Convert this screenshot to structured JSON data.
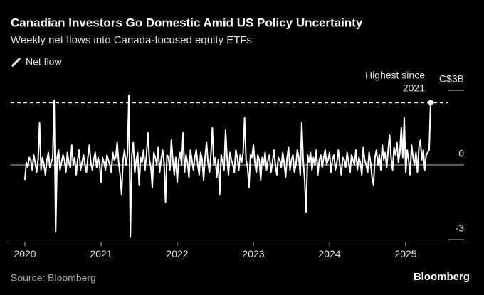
{
  "chart_data": {
    "type": "line",
    "title": "Canadian Investors Go Domestic Amid US Policy Uncertainty",
    "subtitle": "Weekly net flows into Canada-focused equity ETFs",
    "annotation": [
      "Highest since",
      "2021"
    ],
    "source": "Source: Bloomberg",
    "brand": "Bloomberg",
    "categories": [
      "2020",
      null,
      null,
      null,
      null,
      null,
      null,
      null,
      null,
      null,
      null,
      null,
      null,
      null,
      null,
      null,
      null,
      null,
      null,
      null,
      null,
      null,
      null,
      null,
      null,
      null,
      null,
      null,
      null,
      null,
      null,
      null,
      null,
      null,
      null,
      null,
      null,
      null,
      null,
      null,
      null,
      null,
      null,
      null,
      null,
      null,
      null,
      null,
      null,
      null,
      null,
      null,
      "2021",
      null,
      null,
      null,
      null,
      null,
      null,
      null,
      null,
      null,
      null,
      null,
      null,
      null,
      null,
      null,
      null,
      null,
      null,
      null,
      null,
      null,
      null,
      null,
      null,
      null,
      null,
      null,
      null,
      null,
      null,
      null,
      null,
      null,
      null,
      null,
      null,
      null,
      null,
      null,
      null,
      null,
      null,
      null,
      null,
      null,
      null,
      null,
      null,
      null,
      null,
      null,
      "2022",
      null,
      null,
      null,
      null,
      null,
      null,
      null,
      null,
      null,
      null,
      null,
      null,
      null,
      null,
      null,
      null,
      null,
      null,
      null,
      null,
      null,
      null,
      null,
      null,
      null,
      null,
      null,
      null,
      null,
      null,
      null,
      null,
      null,
      null,
      null,
      null,
      null,
      null,
      null,
      null,
      null,
      null,
      null,
      null,
      null,
      null,
      null,
      null,
      null,
      null,
      null,
      "2023",
      null,
      null,
      null,
      null,
      null,
      null,
      null,
      null,
      null,
      null,
      null,
      null,
      null,
      null,
      null,
      null,
      null,
      null,
      null,
      null,
      null,
      null,
      null,
      null,
      null,
      null,
      null,
      null,
      null,
      null,
      null,
      null,
      null,
      null,
      null,
      null,
      null,
      null,
      null,
      null,
      null,
      null,
      null,
      null,
      null,
      null,
      null,
      null,
      null,
      null,
      null,
      "2024",
      null,
      null,
      null,
      null,
      null,
      null,
      null,
      null,
      null,
      null,
      null,
      null,
      null,
      null,
      null,
      null,
      null,
      null,
      null,
      null,
      null,
      null,
      null,
      null,
      null,
      null,
      null,
      null,
      null,
      null,
      null,
      null,
      null,
      null,
      null,
      null,
      null,
      null,
      null,
      null,
      null,
      null,
      null,
      null,
      null,
      null,
      null,
      null,
      null,
      null,
      null,
      "2025",
      null,
      null,
      null,
      null,
      null,
      null,
      null,
      null,
      null,
      null,
      null,
      null,
      null,
      null,
      null,
      null,
      null
    ],
    "series": [
      {
        "name": "Net flow",
        "color": "#ffffff",
        "values": [
          -0.6,
          0.1,
          -0.1,
          0.3,
          0.2,
          -0.2,
          0.4,
          0.1,
          -0.3,
          0.2,
          1.7,
          -0.2,
          0.3,
          0.0,
          -0.4,
          0.2,
          0.5,
          -0.1,
          0.1,
          0.3,
          2.6,
          -2.7,
          0.3,
          0.6,
          -0.2,
          0.1,
          0.4,
          0.2,
          -0.3,
          0.5,
          0.1,
          -0.1,
          0.8,
          0.0,
          0.3,
          -0.4,
          0.2,
          0.6,
          -0.2,
          0.1,
          0.4,
          0.0,
          -0.3,
          0.3,
          0.8,
          0.1,
          -0.2,
          0.2,
          0.5,
          -0.1,
          0.3,
          0.0,
          -0.7,
          0.3,
          0.1,
          -0.2,
          0.4,
          0.2,
          0.0,
          -0.3,
          0.5,
          0.2,
          0.3,
          0.9,
          0.1,
          -0.4,
          -1.2,
          0.2,
          0.6,
          0.0,
          0.4,
          2.8,
          -2.9,
          0.4,
          0.9,
          -0.3,
          0.2,
          0.5,
          -0.8,
          0.3,
          0.1,
          0.6,
          -0.2,
          0.4,
          1.3,
          0.2,
          -0.1,
          -0.9,
          0.5,
          0.3,
          0.0,
          0.7,
          -0.3,
          0.2,
          0.6,
          0.1,
          -1.5,
          0.4,
          0.3,
          -0.2,
          1.0,
          0.2,
          -0.4,
          0.3,
          -0.7,
          0.2,
          0.5,
          0.0,
          1.3,
          -0.3,
          0.4,
          0.1,
          -0.5,
          0.6,
          0.2,
          -0.2,
          0.3,
          0.6,
          0.0,
          -0.4,
          0.5,
          0.2,
          -0.6,
          0.3,
          0.9,
          0.1,
          -0.3,
          0.4,
          1.5,
          0.0,
          0.3,
          -0.5,
          0.2,
          -1.2,
          0.4,
          0.1,
          -0.2,
          1.4,
          0.3,
          -0.4,
          0.5,
          0.2,
          0.0,
          -0.3,
          0.6,
          0.3,
          -0.2,
          0.4,
          0.1,
          0.5,
          1.9,
          0.2,
          -0.1,
          -0.9,
          0.4,
          0.3,
          0.8,
          0.1,
          -0.3,
          0.4,
          0.2,
          -0.6,
          0.3,
          0.0,
          0.5,
          -0.2,
          0.2,
          0.4,
          -0.3,
          0.1,
          0.6,
          0.0,
          -0.4,
          0.3,
          0.2,
          -0.1,
          0.5,
          0.1,
          -0.5,
          0.3,
          0.7,
          -0.2,
          0.2,
          0.4,
          -0.3,
          0.0,
          0.6,
          0.3,
          -0.4,
          1.7,
          0.2,
          -0.6,
          -1.9,
          0.4,
          0.1,
          0.5,
          -0.2,
          0.3,
          0.0,
          0.6,
          -0.4,
          0.2,
          0.4,
          -0.1,
          0.3,
          0.6,
          0.0,
          0.2,
          0.5,
          -0.3,
          0.2,
          0.4,
          -0.2,
          0.1,
          0.6,
          0.0,
          -0.4,
          0.3,
          0.2,
          -0.1,
          0.5,
          0.1,
          -0.3,
          0.4,
          0.2,
          0.0,
          0.6,
          -0.2,
          0.3,
          0.1,
          -0.4,
          0.7,
          0.2,
          0.0,
          -0.3,
          0.5,
          0.1,
          -0.5,
          -0.8,
          0.3,
          0.6,
          0.0,
          0.4,
          -0.2,
          0.8,
          0.2,
          0.5,
          -0.1,
          0.6,
          1.2,
          0.3,
          -0.2,
          0.7,
          0.4,
          0.9,
          0.1,
          0.5,
          1.5,
          0.3,
          1.9,
          -0.3,
          0.6,
          0.2,
          -0.4,
          0.8,
          0.3,
          0.0,
          0.5,
          -0.3,
          0.7,
          1.0,
          0.2,
          0.6,
          -0.2,
          0.4,
          0.5,
          0.6,
          2.5
        ]
      }
    ],
    "ylim": [
      -3.1,
      3.2
    ],
    "yticks": [
      {
        "value": 3,
        "label": "C$3B"
      },
      0,
      -3
    ]
  }
}
